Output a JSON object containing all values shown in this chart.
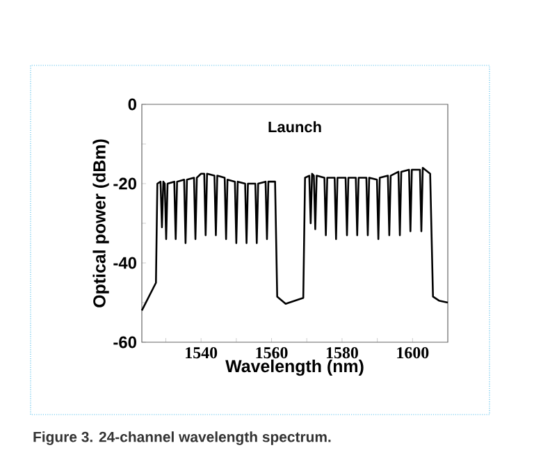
{
  "chart_data": {
    "type": "line",
    "xlabel": "Wavelength (nm)",
    "ylabel": "Optical power (dBm)",
    "annotations": [
      "Launch",
      "Figure 3. 24-channel wavelength spectrum."
    ],
    "color": "#000000",
    "xlim": [
      1523.2,
      1610
    ],
    "ylim": [
      -60,
      0
    ],
    "xticks": [
      {
        "value": 1530,
        "label": null
      },
      1540,
      {
        "value": 1550,
        "label": null
      },
      1560,
      {
        "value": 1570,
        "label": null
      },
      1580,
      {
        "value": 1590,
        "label": null
      },
      1600
    ],
    "yticks": [
      -60,
      {
        "value": -50,
        "label": null
      },
      -40,
      {
        "value": -30,
        "label": null
      },
      -20,
      {
        "value": -10,
        "label": null
      },
      0
    ],
    "x": [
      1523.2,
      1527.2,
      1527.6,
      1528.5,
      1528.9,
      1529.3,
      1529.7,
      1530.1,
      1530.5,
      1532.4,
      1532.8,
      1533.2,
      1535.2,
      1535.6,
      1536.0,
      1538.0,
      1538.4,
      1538.8,
      1540.0,
      1540.9,
      1541.3,
      1541.7,
      1543.8,
      1544.2,
      1544.6,
      1546.7,
      1547.1,
      1547.5,
      1549.6,
      1550.0,
      1550.4,
      1552.5,
      1552.9,
      1553.3,
      1555.4,
      1555.8,
      1556.2,
      1558.3,
      1558.7,
      1559.1,
      1561.0,
      1561.6,
      1564.0,
      1569.0,
      1569.5,
      1570.7,
      1571.1,
      1571.5,
      1572.0,
      1572.4,
      1572.8,
      1575.0,
      1575.4,
      1575.8,
      1577.9,
      1578.3,
      1578.7,
      1581.0,
      1581.4,
      1581.8,
      1583.9,
      1584.3,
      1584.7,
      1586.9,
      1587.3,
      1587.7,
      1589.9,
      1590.3,
      1590.7,
      1593.0,
      1593.4,
      1593.8,
      1596.0,
      1596.4,
      1596.8,
      1599.0,
      1599.4,
      1599.8,
      1602.1,
      1602.5,
      1602.9,
      1605.0,
      1605.8,
      1607.5,
      1610.0
    ],
    "values": [
      -52,
      -45,
      -20,
      -19.5,
      -31,
      -19.5,
      -20,
      -34,
      -20,
      -19.5,
      -34,
      -19.5,
      -19,
      -35,
      -19,
      -18.5,
      -34,
      -18.5,
      -17.5,
      -17.5,
      -33,
      -17.5,
      -18,
      -33,
      -18,
      -18.5,
      -34,
      -19,
      -19.5,
      -35,
      -19.5,
      -20,
      -35,
      -20,
      -20,
      -35,
      -20,
      -19.5,
      -34,
      -19.5,
      -19.5,
      -48.5,
      -50.3,
      -48.8,
      -18.5,
      -18,
      -30,
      -17.5,
      -18,
      -31.5,
      -18,
      -18.5,
      -33,
      -18.5,
      -18.5,
      -34,
      -18.5,
      -18.5,
      -33,
      -18.5,
      -18.5,
      -33,
      -18.5,
      -18.5,
      -33,
      -18.5,
      -19,
      -34,
      -18.5,
      -18,
      -33,
      -18,
      -17,
      -33,
      -17,
      -16.5,
      -32,
      -16.5,
      -16.5,
      -32,
      -16,
      -17.5,
      -48.5,
      -49.5,
      -50
    ]
  }
}
